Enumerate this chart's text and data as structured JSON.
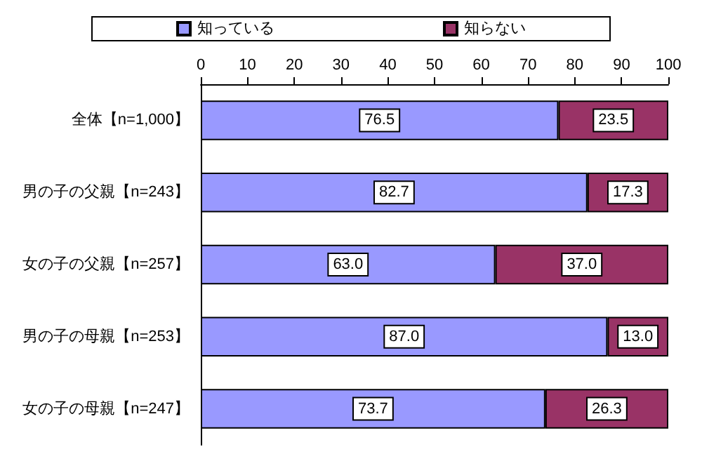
{
  "chart_data": {
    "type": "bar",
    "orientation": "horizontal",
    "stacked": true,
    "categories": [
      "全体【n=1,000】",
      "男の子の父親【n=243】",
      "女の子の父親【n=257】",
      "男の子の母親【n=253】",
      "女の子の母親【n=247】"
    ],
    "series": [
      {
        "name": "知っている",
        "color": "#9999ff",
        "values": [
          76.5,
          82.7,
          63.0,
          87.0,
          73.7
        ],
        "value_labels": [
          "76.5",
          "82.7",
          "63.0",
          "87.0",
          "73.7"
        ]
      },
      {
        "name": "知らない",
        "color": "#993366",
        "values": [
          23.5,
          17.3,
          37.0,
          13.0,
          26.3
        ],
        "value_labels": [
          "23.5",
          "17.3",
          "37.0",
          "13.0",
          "26.3"
        ]
      }
    ],
    "xlim": [
      0,
      100
    ],
    "xticks": [
      0,
      10,
      20,
      30,
      40,
      50,
      60,
      70,
      80,
      90,
      100
    ],
    "grid": false,
    "legend": "top"
  }
}
